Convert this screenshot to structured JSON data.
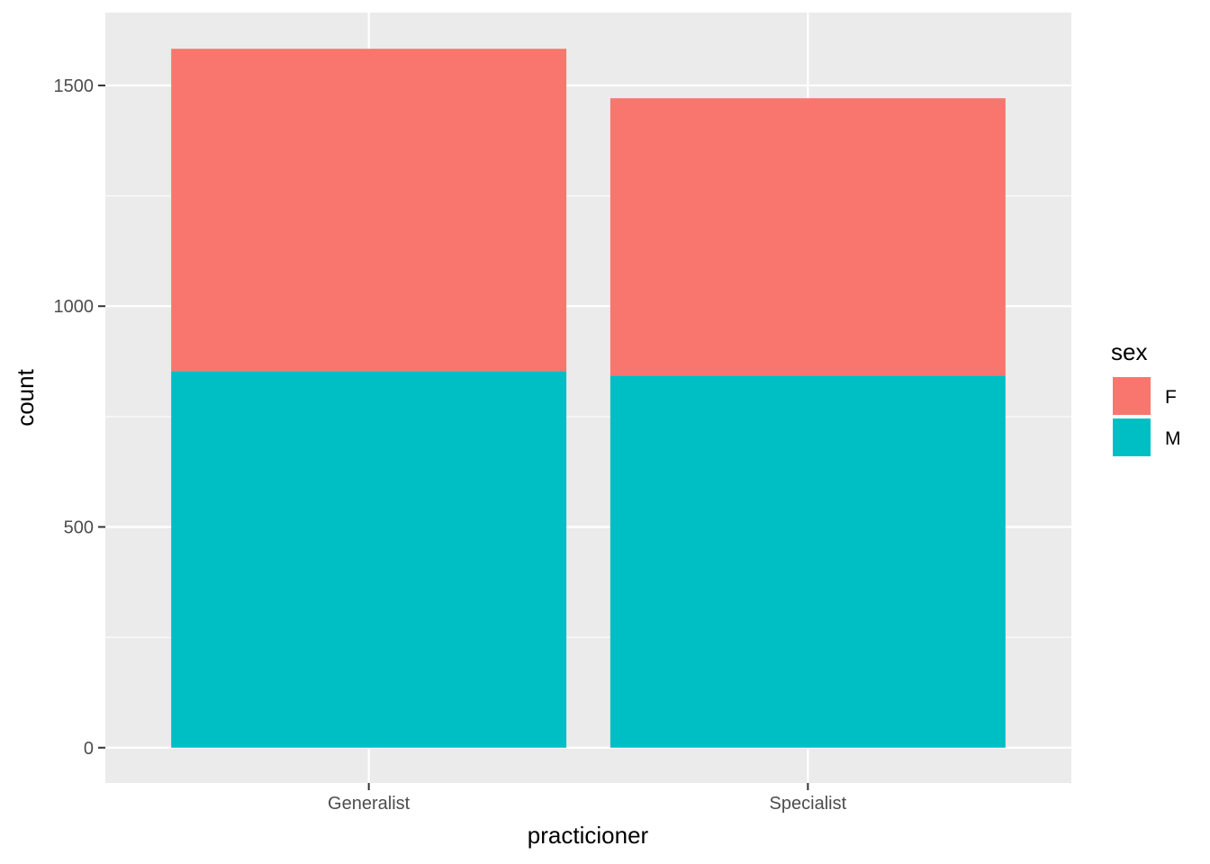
{
  "chart_data": {
    "type": "bar",
    "stacked": true,
    "title": "",
    "xlabel": "practicioner",
    "ylabel": "count",
    "categories": [
      "Generalist",
      "Specialist"
    ],
    "series": [
      {
        "name": "F",
        "color": "#F8766D",
        "values": [
          730,
          628
        ]
      },
      {
        "name": "M",
        "color": "#00BFC4",
        "values": [
          853,
          843
        ]
      }
    ],
    "ylim": [
      -80,
      1665
    ],
    "yticks": [
      0,
      500,
      1000,
      1500
    ],
    "grid": true,
    "legend": {
      "title": "sex",
      "position": "right",
      "entries": [
        "F",
        "M"
      ]
    }
  }
}
